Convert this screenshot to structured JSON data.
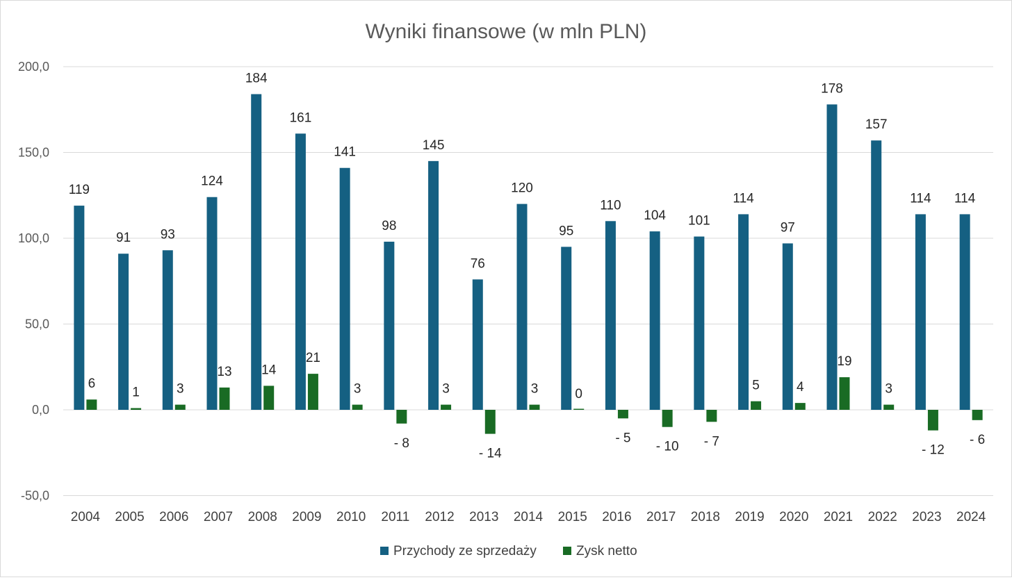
{
  "chart_data": {
    "type": "bar",
    "title": "Wyniki finansowe (w mln PLN)",
    "xlabel": "",
    "ylabel": "",
    "ylim": [
      -50,
      200
    ],
    "yticks": [
      -50,
      0,
      50,
      100,
      150,
      200
    ],
    "ytick_labels": [
      "-50,0",
      "0,0",
      "50,0",
      "100,0",
      "150,0",
      "200,0"
    ],
    "grid": true,
    "legend_position": "bottom",
    "categories": [
      "2004",
      "2005",
      "2006",
      "2007",
      "2008",
      "2009",
      "2010",
      "2011",
      "2012",
      "2013",
      "2014",
      "2015",
      "2016",
      "2017",
      "2018",
      "2019",
      "2020",
      "2021",
      "2022",
      "2023",
      "2024"
    ],
    "series": [
      {
        "name": "Przychody ze sprzedaży",
        "color": "#156082",
        "values": [
          119,
          91,
          93,
          124,
          184,
          161,
          141,
          98,
          145,
          76,
          120,
          95,
          110,
          104,
          101,
          114,
          97,
          178,
          157,
          114,
          114
        ],
        "labels": [
          "119",
          "91",
          "93",
          "124",
          "184",
          "161",
          "141",
          "98",
          "145",
          "76",
          "120",
          "95",
          "110",
          "104",
          "101",
          "114",
          "97",
          "178",
          "157",
          "114",
          "114"
        ]
      },
      {
        "name": "Zysk netto",
        "color": "#196b24",
        "values": [
          6,
          1,
          3,
          13,
          14,
          21,
          3,
          -8,
          3,
          -14,
          3,
          0,
          -5,
          -10,
          -7,
          5,
          4,
          19,
          3,
          -12,
          -6
        ],
        "labels": [
          "6",
          "1",
          "3",
          "13",
          "14",
          "21",
          "3",
          "- 8",
          "3",
          "- 14",
          "3",
          "0",
          "- 5",
          "- 10",
          "- 7",
          "5",
          "4",
          "19",
          "3",
          "- 12",
          "- 6"
        ]
      }
    ]
  }
}
